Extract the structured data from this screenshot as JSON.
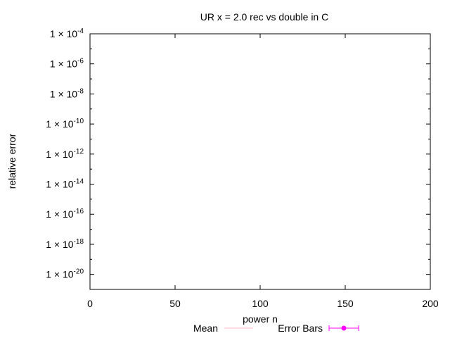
{
  "chart_data": {
    "type": "line",
    "title": "UR x = 2.0 rec vs double in C",
    "xlabel": "power n",
    "ylabel": "relative error",
    "xlim": [
      0,
      200
    ],
    "ylim_exponent": [
      -21,
      -4
    ],
    "y_scale": "log",
    "x_ticks": [
      {
        "value": 0,
        "label": "0"
      },
      {
        "value": 50,
        "label": "50"
      },
      {
        "value": 100,
        "label": "100"
      },
      {
        "value": 150,
        "label": "150"
      },
      {
        "value": 200,
        "label": "200"
      }
    ],
    "y_ticks": [
      {
        "exp": -4,
        "base": "1 × 10",
        "sup": "-4"
      },
      {
        "exp": -6,
        "base": "1 × 10",
        "sup": "-6"
      },
      {
        "exp": -8,
        "base": "1 × 10",
        "sup": "-8"
      },
      {
        "exp": -10,
        "base": "1 × 10",
        "sup": "-10"
      },
      {
        "exp": -12,
        "base": "1 × 10",
        "sup": "-12"
      },
      {
        "exp": -14,
        "base": "1 × 10",
        "sup": "-14"
      },
      {
        "exp": -16,
        "base": "1 × 10",
        "sup": "-16"
      },
      {
        "exp": -18,
        "base": "1 × 10",
        "sup": "-18"
      },
      {
        "exp": -20,
        "base": "1 × 10",
        "sup": "-20"
      }
    ],
    "series": [
      {
        "name": "Mean",
        "color": "#ffb6c1",
        "values": []
      },
      {
        "name": "Error Bars",
        "color": "#ff00ff",
        "values": []
      }
    ],
    "grid": false,
    "legend_position": "bottom"
  }
}
